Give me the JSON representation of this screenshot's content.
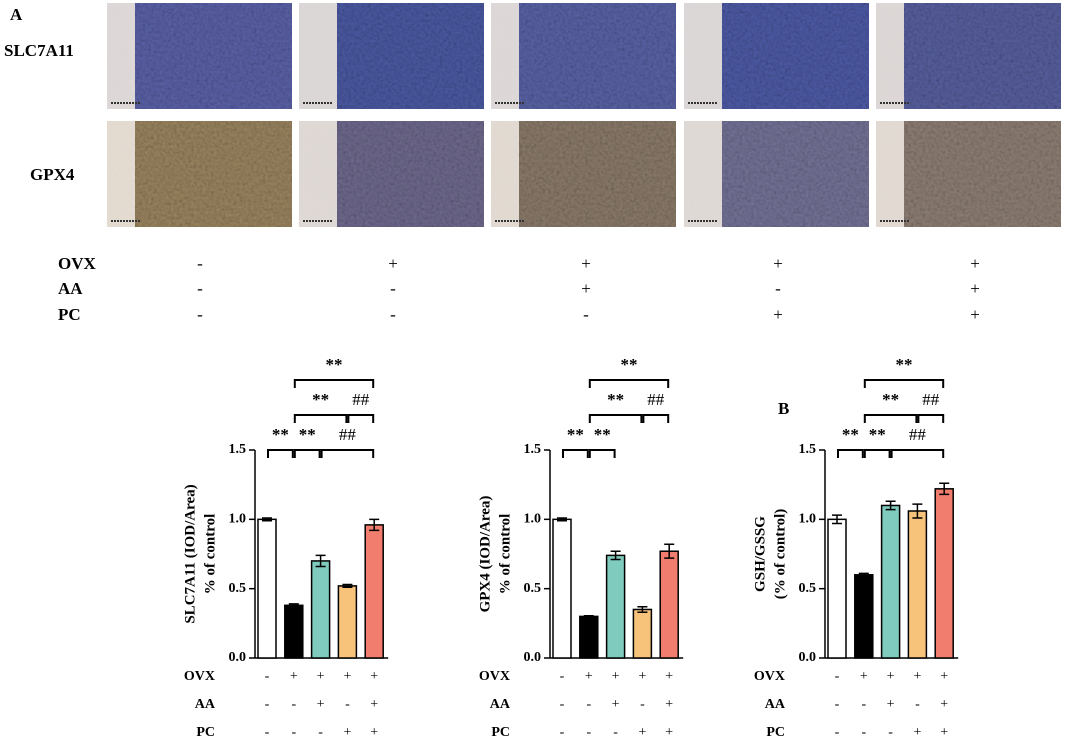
{
  "panel_a": {
    "label": "A",
    "rows": [
      "SLC7A11",
      "GPX4"
    ],
    "treatments": [
      {
        "name": "OVX",
        "values": [
          "-",
          "+",
          "+",
          "+",
          "+"
        ]
      },
      {
        "name": "AA",
        "values": [
          "-",
          "-",
          "+",
          "-",
          "+"
        ]
      },
      {
        "name": "PC",
        "values": [
          "-",
          "-",
          "-",
          "+",
          "+"
        ]
      }
    ]
  },
  "panel_b_label": "B",
  "chart_data": [
    {
      "type": "bar",
      "ylabel": [
        "SLC7A11 (IOD/Area)",
        "% of control"
      ],
      "values": [
        1.0,
        0.38,
        0.7,
        0.52,
        0.96
      ],
      "errors": [
        0.01,
        0.01,
        0.04,
        0.01,
        0.04
      ],
      "colors": [
        "#ffffff",
        "#000000",
        "#7fcbbd",
        "#f7c27a",
        "#f07d6d"
      ],
      "ylim": [
        0,
        1.5
      ],
      "yticks": [
        {
          "value": 0,
          "label": "0.0"
        },
        {
          "value": 0.5,
          "label": "0.5"
        },
        {
          "value": 1,
          "label": "1.0"
        },
        {
          "value": 1.5,
          "label": "1.5"
        }
      ],
      "annotations": [
        "**",
        "**",
        "##",
        "**",
        "##",
        "**"
      ],
      "treatments": [
        {
          "name": "OVX",
          "values": [
            "-",
            "+",
            "+",
            "+",
            "+"
          ]
        },
        {
          "name": "AA",
          "values": [
            "-",
            "-",
            "+",
            "-",
            "+"
          ]
        },
        {
          "name": "PC",
          "values": [
            "-",
            "-",
            "-",
            "+",
            "+"
          ]
        }
      ]
    },
    {
      "type": "bar",
      "ylabel": [
        "GPX4 (IOD/Area)",
        "% of control"
      ],
      "values": [
        1.0,
        0.3,
        0.74,
        0.35,
        0.77
      ],
      "errors": [
        0.01,
        0.005,
        0.03,
        0.02,
        0.05
      ],
      "colors": [
        "#ffffff",
        "#000000",
        "#7fcbbd",
        "#f7c27a",
        "#f07d6d"
      ],
      "ylim": [
        0,
        1.5
      ],
      "yticks": [
        {
          "value": 0,
          "label": "0.0"
        },
        {
          "value": 0.5,
          "label": "0.5"
        },
        {
          "value": 1,
          "label": "1.0"
        },
        {
          "value": 1.5,
          "label": "1.5"
        }
      ],
      "annotations": [
        "**",
        "**",
        "**",
        "##",
        "**"
      ],
      "treatments": [
        {
          "name": "OVX",
          "values": [
            "-",
            "+",
            "+",
            "+",
            "+"
          ]
        },
        {
          "name": "AA",
          "values": [
            "-",
            "-",
            "+",
            "-",
            "+"
          ]
        },
        {
          "name": "PC",
          "values": [
            "-",
            "-",
            "-",
            "+",
            "+"
          ]
        }
      ]
    },
    {
      "type": "bar",
      "ylabel": [
        "GSH/GSSG",
        "(% of control)"
      ],
      "values": [
        1.0,
        0.6,
        1.1,
        1.06,
        1.22
      ],
      "errors": [
        0.03,
        0.01,
        0.03,
        0.05,
        0.04
      ],
      "colors": [
        "#ffffff",
        "#000000",
        "#7fcbbd",
        "#f7c27a",
        "#f07d6d"
      ],
      "ylim": [
        0,
        1.5
      ],
      "yticks": [
        {
          "value": 0,
          "label": "0.0"
        },
        {
          "value": 0.5,
          "label": "0.5"
        },
        {
          "value": 1,
          "label": "1.0"
        },
        {
          "value": 1.5,
          "label": "1.5"
        }
      ],
      "annotations": [
        "**",
        "**",
        "##",
        "**",
        "##",
        "**"
      ],
      "treatments": [
        {
          "name": "OVX",
          "values": [
            "-",
            "+",
            "+",
            "+",
            "+"
          ]
        },
        {
          "name": "AA",
          "values": [
            "-",
            "-",
            "+",
            "-",
            "+"
          ]
        },
        {
          "name": "PC",
          "values": [
            "-",
            "-",
            "-",
            "+",
            "+"
          ]
        }
      ]
    }
  ]
}
